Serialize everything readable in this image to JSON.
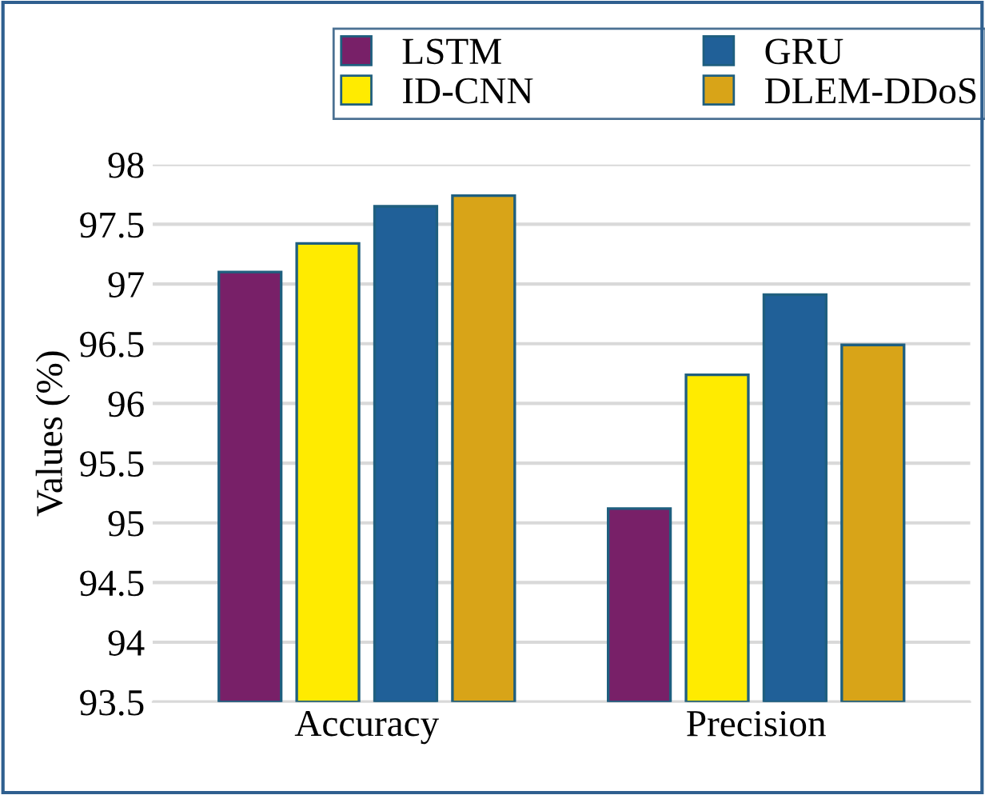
{
  "chart_data": {
    "type": "bar",
    "ylabel": "Values (%)",
    "categories": [
      "Accuracy",
      "Precision"
    ],
    "series": [
      {
        "name": "LSTM",
        "color": "#782068",
        "values": [
          97.1,
          95.12
        ]
      },
      {
        "name": "ID-CNN",
        "color": "#ffeb00",
        "values": [
          97.34,
          96.24
        ]
      },
      {
        "name": "GRU",
        "color": "#206098",
        "values": [
          97.65,
          96.91
        ]
      },
      {
        "name": "DLEM-DDoS",
        "color": "#d8a418",
        "values": [
          97.74,
          96.49
        ]
      }
    ],
    "ylim": [
      93.5,
      98
    ],
    "yticks": [
      93.5,
      94,
      94.5,
      95,
      95.5,
      96,
      96.5,
      97,
      97.5,
      98
    ],
    "grid": "y",
    "legend": "top"
  }
}
